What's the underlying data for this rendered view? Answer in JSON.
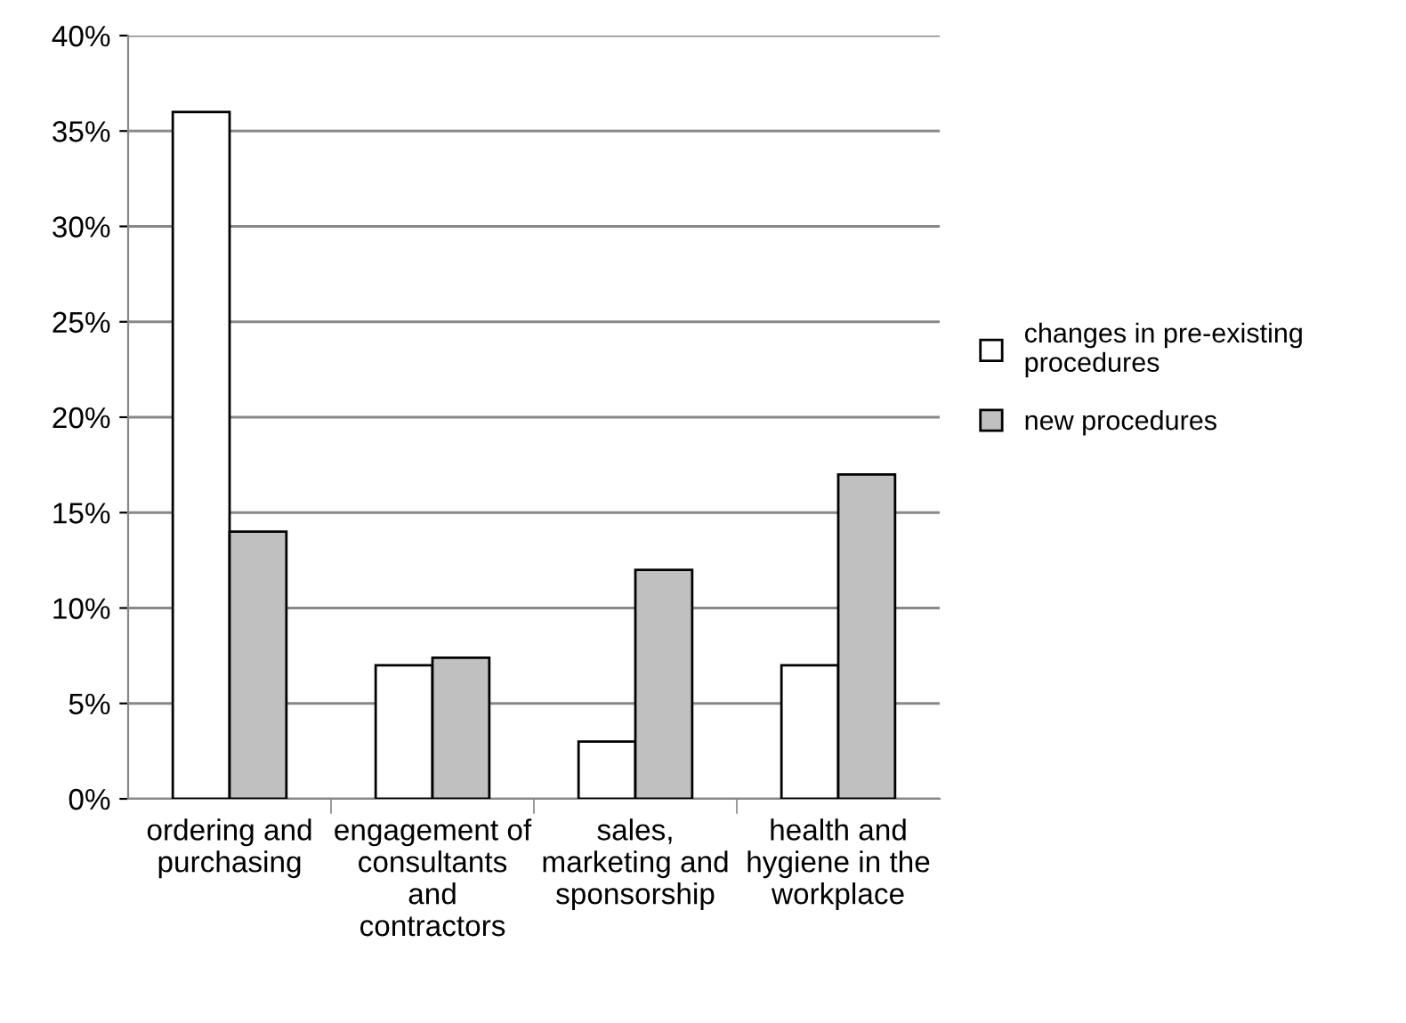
{
  "chart_data": {
    "type": "bar",
    "categories": [
      "ordering and purchasing",
      "engagement of consultants and contractors",
      "sales, marketing and sponsorship",
      "health and hygiene in the workplace"
    ],
    "series": [
      {
        "name": "changes in pre-existing procedures",
        "color": "#ffffff",
        "values": [
          36,
          7,
          3,
          7
        ]
      },
      {
        "name": "new procedures",
        "color": "#c0c0c0",
        "values": [
          14,
          7.4,
          12,
          17
        ]
      }
    ],
    "ylim": [
      0,
      40
    ],
    "yticks": [
      {
        "value": 0,
        "label": "0%"
      },
      {
        "value": 5,
        "label": "5%"
      },
      {
        "value": 10,
        "label": "10%"
      },
      {
        "value": 15,
        "label": "15%"
      },
      {
        "value": 20,
        "label": "20%"
      },
      {
        "value": 25,
        "label": "25%"
      },
      {
        "value": 30,
        "label": "30%"
      },
      {
        "value": 35,
        "label": "35%"
      },
      {
        "value": 40,
        "label": "40%"
      }
    ],
    "grid": "y",
    "legend": "right"
  }
}
